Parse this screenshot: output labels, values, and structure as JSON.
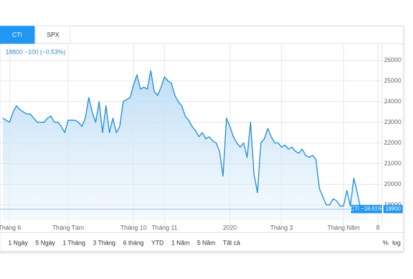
{
  "tabs": [
    "CTI",
    "SPX"
  ],
  "header": "18800 −100 (−0.53%)",
  "price_label": "CTI −18.61%",
  "ranges": [
    "1 Ngày",
    "5 Ngày",
    "1 Tháng",
    "3 Tháng",
    "6 tháng",
    "YTD",
    "1 Năm",
    "5 Năm",
    "Tất cả"
  ],
  "toggles": [
    "%",
    "log"
  ],
  "chart_data": {
    "type": "line",
    "color": "#2e95d8",
    "grid": true,
    "categories": [
      null,
      null,
      "Tháng 6",
      null,
      null,
      null,
      null,
      null,
      null,
      null,
      null,
      null,
      null,
      null,
      null,
      null,
      null,
      null,
      null,
      "Tháng Tám",
      null,
      null,
      null,
      null,
      null,
      null,
      null,
      null,
      null,
      null,
      null,
      null,
      null,
      null,
      null,
      null,
      null,
      null,
      "Tháng 10",
      null,
      null,
      null,
      null,
      null,
      null,
      null,
      null,
      "Tháng 11",
      null,
      null,
      null,
      null,
      null,
      null,
      null,
      null,
      null,
      null,
      null,
      null,
      null,
      null,
      null,
      null,
      null,
      null,
      "2020",
      null,
      null,
      null,
      null,
      null,
      null,
      null,
      null,
      null,
      null,
      null,
      null,
      null,
      null,
      "Tháng 3",
      null,
      null,
      null,
      null,
      null,
      null,
      null,
      null,
      null,
      null,
      null,
      null,
      null,
      null,
      null,
      null,
      null,
      "Tháng Năm",
      null,
      null,
      null,
      null,
      null,
      null,
      null,
      null,
      null,
      "8"
    ],
    "values": [
      23200,
      23100,
      23000,
      23500,
      23800,
      23600,
      23500,
      23400,
      23400,
      23200,
      23000,
      23000,
      23000,
      23200,
      23300,
      23000,
      23000,
      22800,
      22500,
      23100,
      23100,
      23100,
      23000,
      22800,
      23200,
      24200,
      23500,
      23000,
      24000,
      22500,
      23800,
      22500,
      23200,
      22500,
      22800,
      24000,
      24100,
      24200,
      24800,
      25300,
      24600,
      24700,
      24600,
      25500,
      24500,
      24300,
      24700,
      25200,
      25000,
      24900,
      24300,
      24000,
      23800,
      23300,
      23100,
      22800,
      22600,
      22300,
      22500,
      22200,
      22300,
      22100,
      22000,
      21600,
      20400,
      23200,
      22800,
      22300,
      22000,
      21800,
      22000,
      21300,
      23000,
      20500,
      19600,
      22000,
      22200,
      22700,
      22300,
      22000,
      22000,
      21800,
      21900,
      21700,
      21800,
      21600,
      21500,
      21700,
      21400,
      21300,
      21400,
      21200,
      19800,
      19400,
      19000,
      19000,
      19300,
      19200,
      18950,
      18950,
      19700,
      18950,
      20300,
      19600,
      18800,
      18900,
      18800,
      null,
      null,
      null
    ],
    "last_price": 18800,
    "ylim": [
      18250,
      26750
    ],
    "yticks": [
      19000,
      20000,
      21000,
      22000,
      23000,
      24000,
      25000,
      26000
    ]
  }
}
